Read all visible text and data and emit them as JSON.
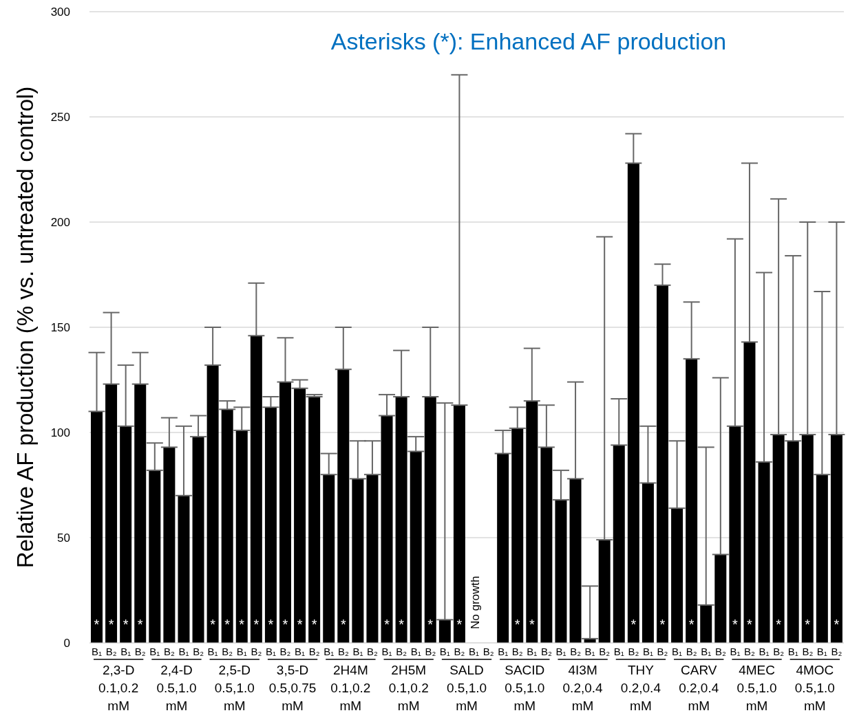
{
  "chart_data": {
    "type": "bar",
    "title": "Asterisks (*): Enhanced AF production",
    "ylabel": "Relative AF production (% vs. untreated control)",
    "categories": [
      "B₁",
      "B₂",
      "B₁",
      "B₂",
      "B₁",
      "B₂",
      "B₁",
      "B₂",
      "B₁",
      "B₂",
      "B₁",
      "B₂",
      "B₁",
      "B₂",
      "B₁",
      "B₂",
      "B₁",
      "B₂",
      "B₁",
      "B₂",
      "B₁",
      "B₂",
      "B₁",
      "B₂",
      "B₁",
      "B₂",
      "B₁",
      "B₂",
      "B₁",
      "B₂",
      "B₁",
      "B₂",
      "B₁",
      "B₂",
      "B₁",
      "B₂",
      "B₁",
      "B₂",
      "B₁",
      "B₂",
      "B₁",
      "B₂",
      "B₁",
      "B₂",
      "B₁",
      "B₂",
      "B₁",
      "B₂",
      "B₁",
      "B₂",
      "B₁",
      "B₂"
    ],
    "values": [
      110,
      123,
      103,
      123,
      82,
      93,
      70,
      98,
      132,
      111,
      101,
      146,
      112,
      124,
      121,
      117,
      80,
      130,
      78,
      80,
      108,
      117,
      91,
      117,
      11,
      113,
      null,
      null,
      90,
      102,
      115,
      93,
      68,
      78,
      2,
      49,
      94,
      228,
      76,
      170,
      64,
      135,
      18,
      42,
      103,
      143,
      86,
      99,
      96,
      99,
      80,
      99
    ],
    "errors": [
      [
        110,
        138
      ],
      [
        123,
        157
      ],
      [
        103,
        132
      ],
      [
        123,
        138
      ],
      [
        82,
        95
      ],
      [
        93,
        107
      ],
      [
        70,
        103
      ],
      [
        98,
        108
      ],
      [
        132,
        150
      ],
      [
        111,
        115
      ],
      [
        101,
        112
      ],
      [
        146,
        171
      ],
      [
        112,
        117
      ],
      [
        124,
        145
      ],
      [
        121,
        125
      ],
      [
        117,
        118
      ],
      [
        80,
        90
      ],
      [
        130,
        150
      ],
      [
        78,
        96
      ],
      [
        80,
        96
      ],
      [
        108,
        118
      ],
      [
        117,
        139
      ],
      [
        91,
        98
      ],
      [
        117,
        150
      ],
      [
        11,
        114
      ],
      [
        113,
        270
      ],
      null,
      null,
      [
        90,
        101
      ],
      [
        102,
        112
      ],
      [
        115,
        140
      ],
      [
        93,
        113
      ],
      [
        68,
        82
      ],
      [
        78,
        124
      ],
      [
        2,
        27
      ],
      [
        49,
        193
      ],
      [
        94,
        116
      ],
      [
        228,
        242
      ],
      [
        76,
        103
      ],
      [
        170,
        180
      ],
      [
        64,
        96
      ],
      [
        135,
        162
      ],
      [
        18,
        93
      ],
      [
        42,
        126
      ],
      [
        103,
        192
      ],
      [
        143,
        228
      ],
      [
        86,
        176
      ],
      [
        99,
        211
      ],
      [
        96,
        184
      ],
      [
        99,
        200
      ],
      [
        80,
        167
      ],
      [
        99,
        200
      ]
    ],
    "value_labels": [
      "*",
      "*",
      "*",
      "*",
      null,
      null,
      null,
      null,
      "*",
      "*",
      "*",
      "*",
      "*",
      "*",
      "*",
      "*",
      null,
      "*",
      null,
      null,
      "*",
      "*",
      null,
      "*",
      null,
      "*",
      null,
      null,
      null,
      "*",
      "*",
      null,
      null,
      null,
      null,
      null,
      null,
      "*",
      null,
      "*",
      null,
      "*",
      null,
      null,
      "*",
      "*",
      null,
      "*",
      null,
      "*",
      null,
      "*"
    ],
    "color": "#000000",
    "ylim": [
      0,
      300
    ],
    "yticks": [
      0,
      50,
      100,
      150,
      200,
      250,
      300
    ],
    "grid": "y",
    "annotations": [
      "No growth",
      "2,3-D\n0.1,0.2\nmM",
      "2,4-D\n0.5,1.0\nmM",
      "2,5-D\n0.5,1.0\nmM",
      "3,5-D\n0.5,0.75\nmM",
      "2H4M\n0.1,0.2\nmM",
      "2H5M\n0.1,0.2\nmM",
      "SALD\n0.5,1.0\nmM",
      "SACID\n0.5,1.0\nmM",
      "4I3M\n0.2,0.4\nmM",
      "THY\n0.2,0.4\nmM",
      "CARV\n0.2,0.4\nmM",
      "4MEC\n0.5,1.0\nmM",
      "4MOC\n0.5,1.0\nmM"
    ]
  }
}
